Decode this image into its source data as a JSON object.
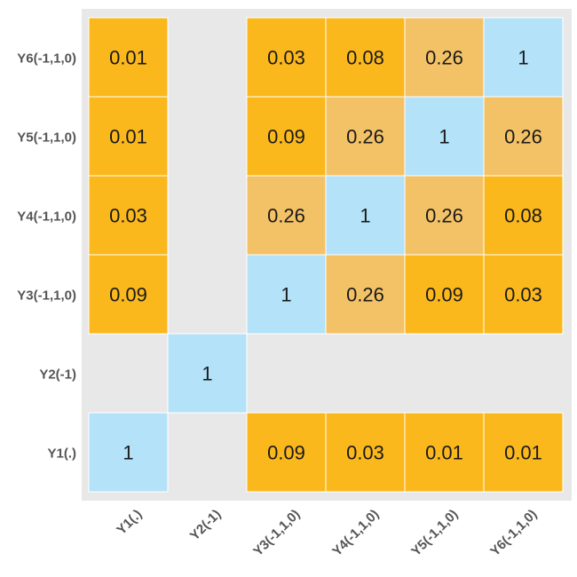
{
  "chart_data": {
    "type": "heatmap",
    "row_labels": [
      "Y6(-1,1,0)",
      "Y5(-1,1,0)",
      "Y4(-1,1,0)",
      "Y3(-1,1,0)",
      "Y2(-1)",
      "Y1(.)"
    ],
    "col_labels": [
      "Y1(.)",
      "Y2(-1)",
      "Y3(-1,1,0)",
      "Y4(-1,1,0)",
      "Y5(-1,1,0)",
      "Y6(-1,1,0)"
    ],
    "values": [
      [
        0.01,
        null,
        0.03,
        0.08,
        0.26,
        1
      ],
      [
        0.01,
        null,
        0.09,
        0.26,
        1,
        0.26
      ],
      [
        0.03,
        null,
        0.26,
        1,
        0.26,
        0.08
      ],
      [
        0.09,
        null,
        1,
        0.26,
        0.09,
        0.03
      ],
      [
        null,
        1,
        null,
        null,
        null,
        null
      ],
      [
        1,
        null,
        0.09,
        0.03,
        0.01,
        0.01
      ]
    ],
    "labels": [
      [
        "0.01",
        "",
        "0.03",
        "0.08",
        "0.26",
        "1"
      ],
      [
        "0.01",
        "",
        "0.09",
        "0.26",
        "1",
        "0.26"
      ],
      [
        "0.03",
        "",
        "0.26",
        "1",
        "0.26",
        "0.08"
      ],
      [
        "0.09",
        "",
        "1",
        "0.26",
        "0.09",
        "0.03"
      ],
      [
        "",
        "1",
        "",
        "",
        "",
        ""
      ],
      [
        "1",
        "",
        "0.09",
        "0.03",
        "0.01",
        "0.01"
      ]
    ],
    "title": "",
    "xlabel": "",
    "ylabel": "",
    "grid": false,
    "legend": "none",
    "colors": {
      "diagonal": "#b3e2f9",
      "low": "#fbb81d",
      "high": "#f4c266",
      "background": "#e8e8e8",
      "cell_border": "#ffffff"
    }
  }
}
